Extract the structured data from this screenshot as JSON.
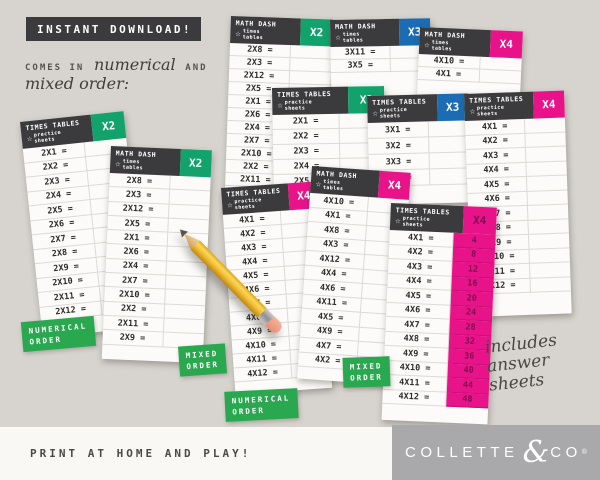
{
  "badge": {
    "instant_download": "INSTANT DOWNLOAD!"
  },
  "intro": {
    "pre": "COMES IN",
    "script1": "numerical",
    "mid": "AND",
    "script2": "mixed order:"
  },
  "order_labels": {
    "numerical": [
      "NUMERICAL",
      "ORDER"
    ],
    "mixed": [
      "MIXED",
      "ORDER"
    ]
  },
  "note": {
    "lines": [
      "includes",
      "answer",
      "sheets"
    ]
  },
  "footer": {
    "print_text": "PRINT AT HOME AND PLAY!",
    "brand": {
      "name": "COLLETTE",
      "amp": "&",
      "co": "CO",
      "reg": "®"
    }
  },
  "colors": {
    "green": "#12a36c",
    "blue": "#1b6cb3",
    "pink": "#e91389",
    "header_dark": "#3b3b3d",
    "label_green": "#2aa84f",
    "answer_text": "#7c0b52",
    "paper": "#fcfbf9"
  },
  "icons": {
    "star": "☆",
    "pencil": "pencil-graphic"
  },
  "sheets": [
    {
      "title": "MATH DASH",
      "subtitle": [
        "times",
        "tables"
      ],
      "label": "X2",
      "color": "green",
      "rows": [
        "2X8 =",
        "2X3 =",
        "2X12 =",
        "2X5 =",
        "2X1 =",
        "2X6 =",
        "2X4 =",
        "2X7 =",
        "2X10 =",
        "2X2 =",
        "2X11 =",
        "2X9 ="
      ]
    },
    {
      "title": "MATH DASH",
      "subtitle": [
        "times",
        "tables"
      ],
      "label": "X3",
      "color": "blue",
      "rows": [
        "3X11 =",
        "3X5 ="
      ]
    },
    {
      "title": "MATH DASH",
      "subtitle": [
        "times",
        "tables"
      ],
      "label": "X4",
      "color": "pink",
      "rows": [
        "4X10 =",
        "4X1 ="
      ]
    },
    {
      "title": "TIMES TABLES",
      "subtitle": [
        "practice",
        "sheets"
      ],
      "label": "X2",
      "color": "green",
      "rows": [
        "2X1 =",
        "2X2 =",
        "2X3 =",
        "2X4 =",
        "2X5 ="
      ]
    },
    {
      "title": "TIMES TABLES",
      "subtitle": [
        "practice",
        "sheets"
      ],
      "label": "X3",
      "color": "blue",
      "rows": [
        "3X1 =",
        "3X2 =",
        "3X3 =",
        "3X4 ="
      ]
    },
    {
      "title": "TIMES TABLES",
      "subtitle": [
        "practice",
        "sheets"
      ],
      "label": "X4",
      "color": "pink",
      "rows": [
        "4X1 =",
        "4X2 =",
        "4X3 =",
        "4X4 =",
        "4X5 =",
        "4X6 =",
        "4X7 =",
        "4X8 =",
        "4X9 =",
        "4X10 =",
        "4X11 =",
        "4X12 ="
      ]
    },
    {
      "title": "TIMES TABLES",
      "subtitle": [
        "practice",
        "sheets"
      ],
      "label": "X4",
      "color": "pink",
      "rows": [
        "4X1 =",
        "4X2 =",
        "4X3 =",
        "4X4 =",
        "4X5 =",
        "4X6 =",
        "4X7 =",
        "4X8 =",
        "4X9 =",
        "4X10 =",
        "4X11 =",
        "4X12 ="
      ]
    },
    {
      "title": "MATH DASH",
      "subtitle": [
        "times",
        "tables"
      ],
      "label": "X4",
      "color": "pink",
      "rows": [
        "4X10 =",
        "4X1 =",
        "4X8 =",
        "4X3 =",
        "4X12 =",
        "4X4 =",
        "4X6 =",
        "4X11 =",
        "4X5 =",
        "4X9 =",
        "4X7 =",
        "4X2 ="
      ]
    },
    {
      "title": "TIMES TABLES",
      "subtitle": [
        "practice",
        "sheets"
      ],
      "label": "X4",
      "color": "pink",
      "answer_label_dark": true,
      "rows": [
        "4X1 =",
        "4X2 =",
        "4X3 =",
        "4X4 =",
        "4X5 =",
        "4X6 =",
        "4X7 =",
        "4X8 =",
        "4X9 =",
        "4X10 =",
        "4X11 =",
        "4X12 ="
      ],
      "answers": [
        "4",
        "8",
        "12",
        "16",
        "20",
        "24",
        "28",
        "32",
        "36",
        "40",
        "44",
        "48"
      ]
    },
    {
      "title": "TIMES TABLES",
      "subtitle": [
        "practice",
        "sheets"
      ],
      "label": "X2",
      "color": "green",
      "rows": [
        "2X1 =",
        "2X2 =",
        "2X3 =",
        "2X4 =",
        "2X5 =",
        "2X6 =",
        "2X7 =",
        "2X8 =",
        "2X9 =",
        "2X10 =",
        "2X11 =",
        "2X12 ="
      ]
    },
    {
      "title": "MATH DASH",
      "subtitle": [
        "times",
        "tables"
      ],
      "label": "X2",
      "color": "green",
      "rows": [
        "2X8 =",
        "2X3 =",
        "2X12 =",
        "2X5 =",
        "2X1 =",
        "2X6 =",
        "2X4 =",
        "2X7 =",
        "2X10 =",
        "2X2 =",
        "2X11 =",
        "2X9 ="
      ]
    }
  ]
}
